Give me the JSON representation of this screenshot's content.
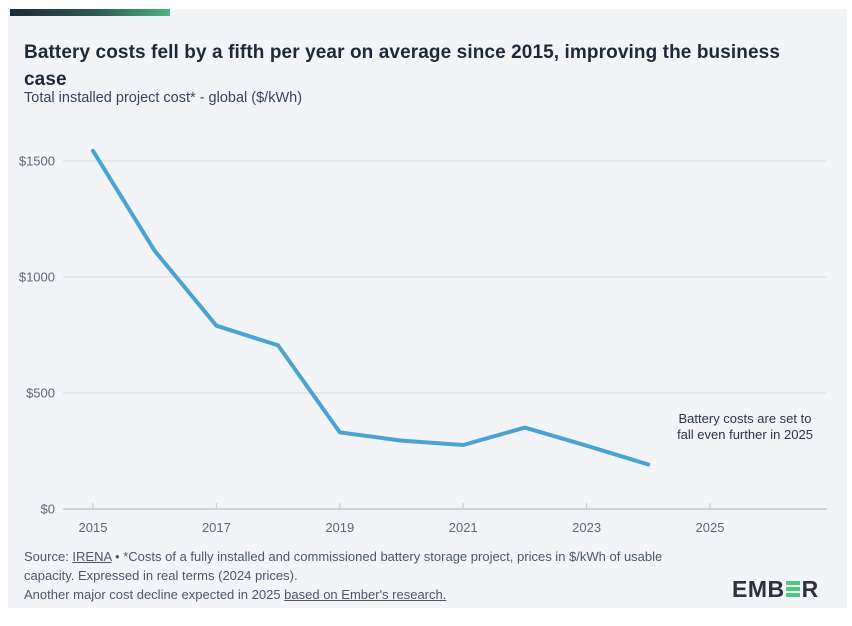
{
  "header": {
    "title": "Battery costs fell by a fifth per year on average since 2015, improving the business case",
    "subtitle": "Total installed project cost* - global ($/kWh)"
  },
  "chart_data": {
    "type": "line",
    "title": "Total installed project cost* - global ($/kWh)",
    "series": [
      {
        "name": "Total installed battery project cost ($/kWh)",
        "x": [
          2015,
          2016,
          2017,
          2018,
          2019,
          2020,
          2021,
          2022,
          2023,
          2024
        ],
        "values": [
          1544,
          1113,
          790,
          705,
          330,
          295,
          276,
          351,
          273,
          192
        ]
      }
    ],
    "xlabel": "",
    "ylabel": "$/kWh",
    "xlim": [
      2014.5,
      2026.9
    ],
    "ylim": [
      0,
      1550
    ],
    "x_ticks": [
      2015,
      2017,
      2019,
      2021,
      2023,
      2025
    ],
    "x_tick_labels": [
      "2015",
      "2017",
      "2019",
      "2021",
      "2023",
      "2025"
    ],
    "y_ticks": [
      0,
      500,
      1000,
      1500
    ],
    "y_tick_labels": [
      "$0",
      "$500",
      "$1000",
      "$1500"
    ],
    "grid": true,
    "legend": "none",
    "line_color": "#4ba3d3",
    "grid_color": "#d6dae1",
    "axis_line_color": "#a9b1bd",
    "tick_text_color": "#5d6878",
    "annotation": {
      "line1": "Battery costs are set to",
      "line2": "fall even further in 2025"
    }
  },
  "footer": {
    "source_prefix": "Source: ",
    "source_link": "IRENA",
    "separator": " • ",
    "note": "*Costs of a fully installed and commissioned battery storage project, prices in $/kWh of usable capacity. Expressed in real terms (2024 prices).",
    "research_prefix": "Another major cost decline expected in 2025 ",
    "research_link": "based on Ember's research."
  },
  "logo": {
    "part1": "EMB",
    "part2": "R",
    "green_e_icon": "three-bars-letter-e",
    "brand_green": "#4ec87e",
    "brand_navy": "#2c333e"
  },
  "colors": {
    "card_background": "#f2f4f7",
    "title_navy": "#1d2939",
    "accent_gradient_start": "#1d2939",
    "accent_gradient_end": "#4fb57f",
    "line_blue": "#4ba3d3"
  }
}
